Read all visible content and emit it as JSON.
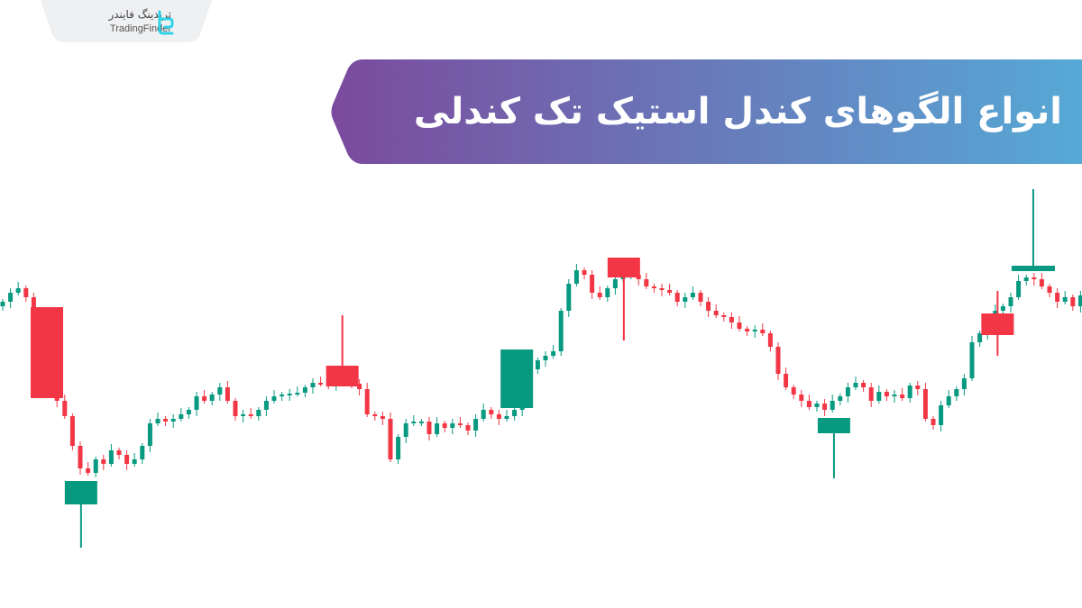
{
  "brand": {
    "name_fa": "تریدینگ فایندر",
    "name_en": "TradingFinder",
    "logo_color": "#2fd3e8"
  },
  "banner": {
    "title": "انواع الگوهای کندل استیک تک کندلی",
    "gradient_from": "#7b4a9e",
    "gradient_to": "#56a9d6"
  },
  "chart_data": {
    "type": "candlestick",
    "up_color": "#089981",
    "down_color": "#f23645",
    "axes": "none",
    "grid": false,
    "closes": [
      365,
      375,
      380,
      370,
      340,
      310,
      280,
      255,
      238,
      205,
      180,
      175,
      190,
      185,
      200,
      195,
      185,
      190,
      205,
      230,
      235,
      232,
      235,
      240,
      245,
      260,
      255,
      262,
      270,
      255,
      238,
      240,
      238,
      245,
      255,
      260,
      262,
      263,
      264,
      270,
      275,
      274,
      273,
      275,
      275,
      274,
      268,
      240,
      238,
      235,
      190,
      215,
      230,
      232,
      232,
      218,
      230,
      225,
      230,
      228,
      222,
      235,
      245,
      240,
      235,
      238,
      245,
      270,
      290,
      300,
      305,
      310,
      355,
      385,
      400,
      395,
      375,
      370,
      380,
      390,
      395,
      395,
      390,
      382,
      380,
      378,
      375,
      365,
      370,
      375,
      365,
      355,
      350,
      348,
      342,
      335,
      332,
      334,
      330,
      315,
      285,
      270,
      262,
      255,
      248,
      252,
      245,
      255,
      260,
      270,
      275,
      270,
      255,
      265,
      260,
      262,
      258,
      272,
      268,
      235,
      228,
      250,
      260,
      268,
      280,
      320,
      330,
      340,
      355,
      360,
      370,
      388,
      392,
      390,
      382,
      375,
      365,
      370,
      360,
      372
    ],
    "pattern_candles": [
      {
        "index": 5.7,
        "open": 359,
        "high": 359,
        "low": 258,
        "close": 258
      },
      {
        "index": 10.1,
        "open": 140,
        "high": 166,
        "low": 92,
        "close": 166
      },
      {
        "index": 43.8,
        "open": 294,
        "high": 350,
        "low": 271,
        "close": 271
      },
      {
        "index": 66.3,
        "open": 247,
        "high": 312,
        "low": 247,
        "close": 312
      },
      {
        "index": 80.1,
        "open": 414,
        "high": 414,
        "low": 322,
        "close": 392
      },
      {
        "index": 107.2,
        "open": 219,
        "high": 236,
        "low": 169,
        "close": 236
      },
      {
        "index": 128.3,
        "open": 352,
        "high": 377,
        "low": 305,
        "close": 328
      },
      {
        "index": 132.9,
        "open": 399,
        "high": 490,
        "low": 399,
        "close": 405
      }
    ]
  }
}
